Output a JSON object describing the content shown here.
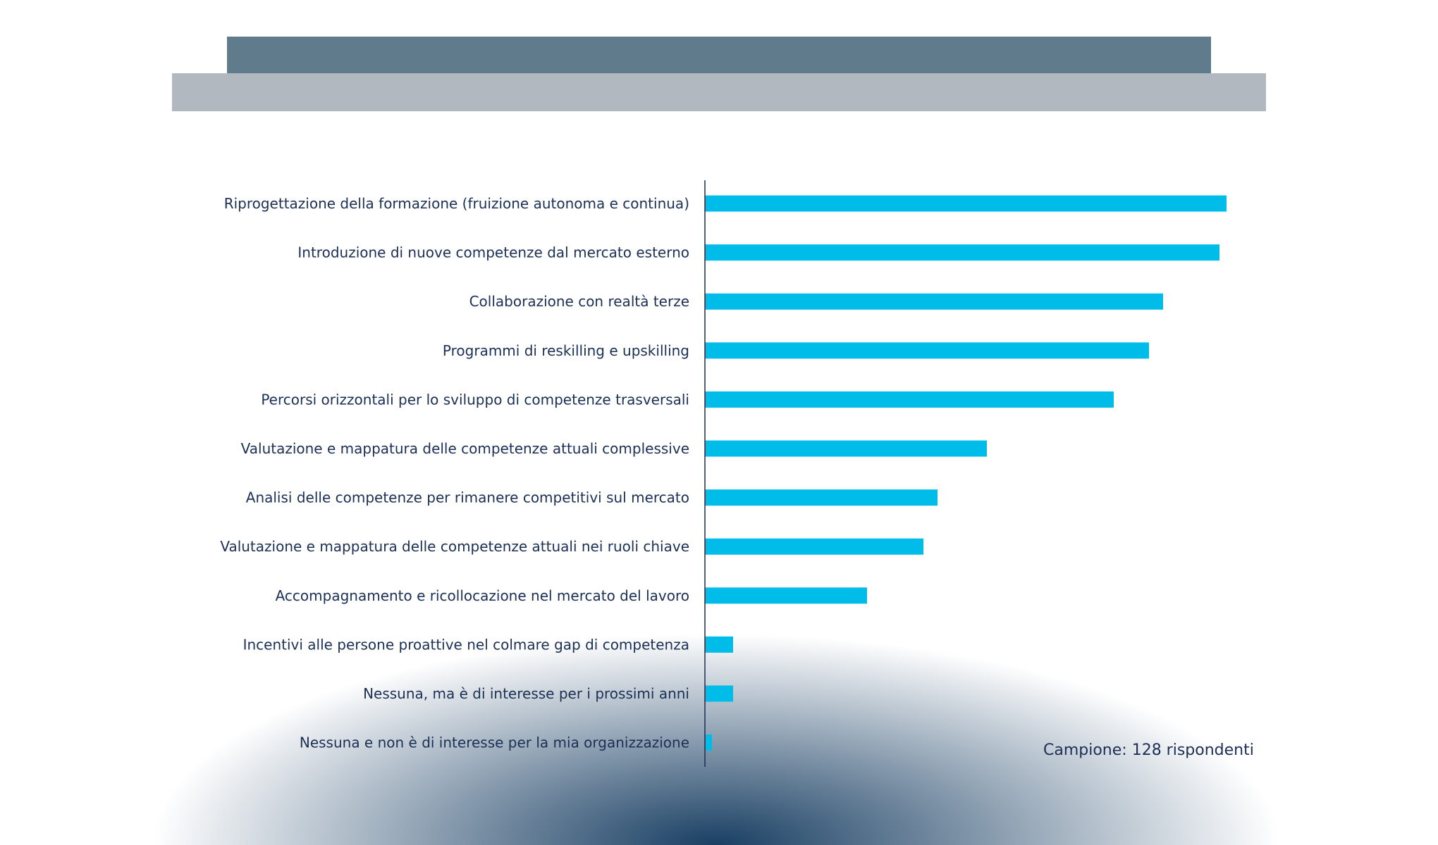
{
  "chart_data": {
    "type": "bar",
    "orientation": "horizontal",
    "categories": [
      "Riprogettazione della formazione (fruizione autonoma e continua)",
      "Introduzione di nuove competenze dal mercato esterno",
      "Collaborazione con realtà terze",
      "Programmi di reskilling e upskilling",
      "Percorsi orizzontali per lo sviluppo di competenze trasversali",
      "Valutazione e mappatura delle competenze attuali complessive",
      "Analisi delle competenze per rimanere competitivi sul mercato",
      "Valutazione e mappatura delle competenze attuali nei ruoli chiave",
      "Accompagnamento e ricollocazione nel mercato del lavoro",
      "Incentivi alle persone proattive nel colmare gap di competenza",
      "Nessuna, ma è di interesse per i prossimi anni",
      "Nessuna e non è di interesse per la mia organizzazione"
    ],
    "values": [
      74,
      73,
      65,
      63,
      58,
      40,
      33,
      31,
      23,
      4,
      4,
      1
    ],
    "xlim": [
      0,
      80
    ],
    "grid": false,
    "bar_color": "#00bce8",
    "annotation": "Campione: 128 rispondenti"
  }
}
